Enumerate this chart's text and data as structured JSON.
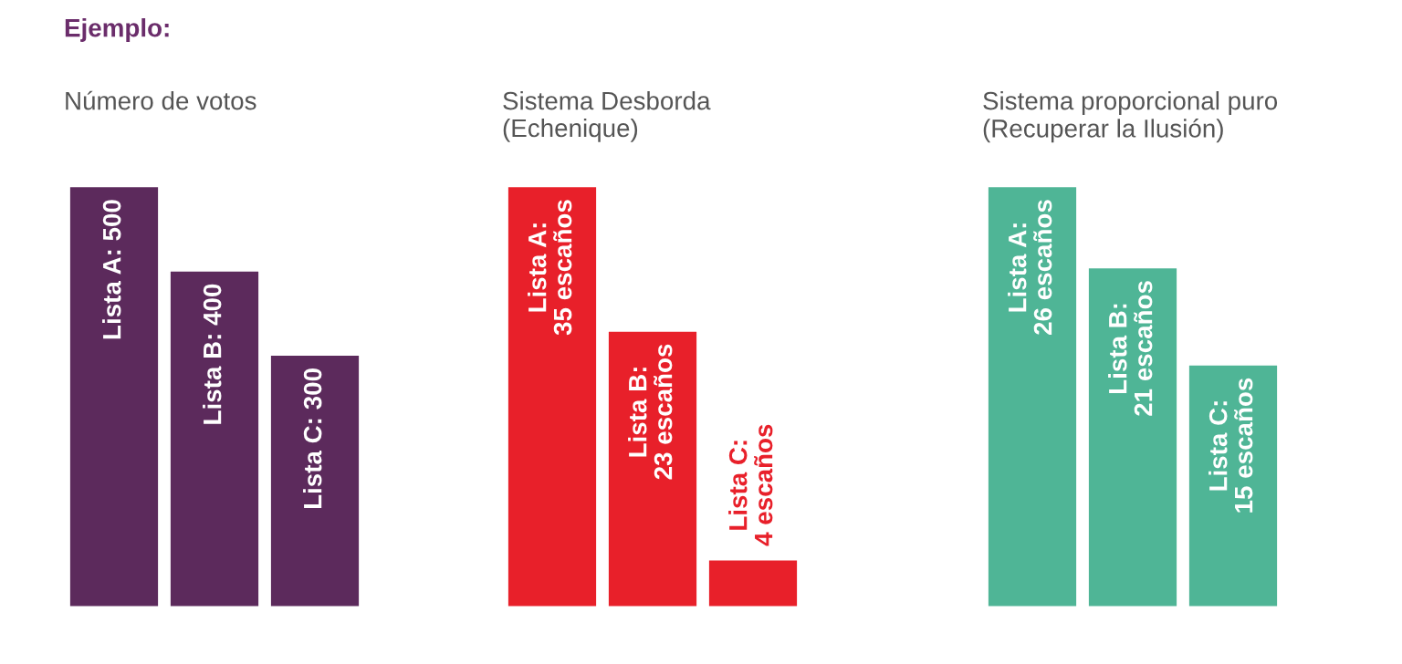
{
  "chart_data": [
    {
      "type": "bar",
      "title": "Número de votos",
      "categories": [
        null,
        null,
        null
      ],
      "values": [
        500,
        400,
        300
      ],
      "value_labels": [
        "Lista A: 500",
        "Lista B: 400",
        "Lista C: 300"
      ],
      "color": "#5c2a5c",
      "tick_labels": false,
      "annotations": [
        "Ejemplo:"
      ]
    },
    {
      "type": "bar",
      "title": "Sistema Desborda\n(Echenique)",
      "categories": [
        null,
        null,
        null
      ],
      "values": [
        35,
        23,
        4
      ],
      "value_labels": [
        "Lista A:\n35 escaños",
        "Lista B:\n23 escaños",
        "Lista C:\n4 escaños"
      ],
      "color": "#e8202a",
      "tick_labels": false
    },
    {
      "type": "bar",
      "title": "Sistema proporcional puro\n(Recuperar la Ilusión)",
      "categories": [
        null,
        null,
        null
      ],
      "values": [
        26,
        21,
        15
      ],
      "value_labels": [
        "Lista A:\n26 escaños",
        "Lista B:\n21 escaños",
        "Lista C:\n15 escaños"
      ],
      "color": "#4fb596",
      "tick_labels": false
    }
  ]
}
